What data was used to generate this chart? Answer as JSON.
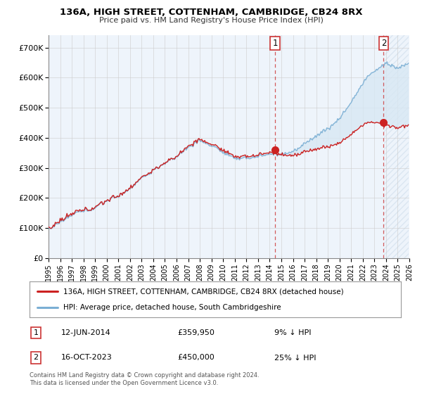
{
  "title": "136A, HIGH STREET, COTTENHAM, CAMBRIDGE, CB24 8RX",
  "subtitle": "Price paid vs. HM Land Registry's House Price Index (HPI)",
  "ylabel_ticks": [
    "£0",
    "£100K",
    "£200K",
    "£300K",
    "£400K",
    "£500K",
    "£600K",
    "£700K"
  ],
  "ytick_values": [
    0,
    100000,
    200000,
    300000,
    400000,
    500000,
    600000,
    700000
  ],
  "ylim": [
    0,
    740000
  ],
  "xlim_start": 1995,
  "xlim_end": 2026,
  "legend_house": "136A, HIGH STREET, COTTENHAM, CAMBRIDGE, CB24 8RX (detached house)",
  "legend_hpi": "HPI: Average price, detached house, South Cambridgeshire",
  "transaction1_date": "12-JUN-2014",
  "transaction1_price": "£359,950",
  "transaction1_pct": "9% ↓ HPI",
  "transaction1_year": 2014.458,
  "transaction1_price_val": 359950,
  "transaction2_date": "16-OCT-2023",
  "transaction2_price": "£450,000",
  "transaction2_pct": "25% ↓ HPI",
  "transaction2_year": 2023.792,
  "transaction2_price_val": 450000,
  "footnote1": "Contains HM Land Registry data © Crown copyright and database right 2024.",
  "footnote2": "This data is licensed under the Open Government Licence v3.0.",
  "hpi_color": "#7bafd4",
  "house_color": "#cc2222",
  "dashed_line_color": "#cc3333",
  "fill_color": "#d8e8f4",
  "bg_color": "#eef4fb",
  "grid_color": "#cccccc",
  "hatch_color": "#c8d8e8"
}
